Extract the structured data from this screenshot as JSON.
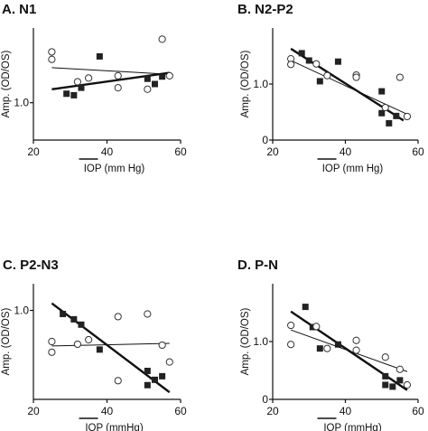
{
  "chart_data": [
    {
      "type": "scatter",
      "panel_label": "A.  N1",
      "xlabel": "IOP (mm Hg)",
      "ylabel": "Amp. (OD/OS)",
      "xticks": [
        "20",
        "40",
        "60"
      ],
      "yticks": [
        "1.0"
      ],
      "xlim": [
        20,
        60
      ],
      "ylim": [
        0.5,
        2.0
      ],
      "grid": false,
      "series": [
        {
          "marker": "filled-square",
          "points": [
            [
              29,
              1.12
            ],
            [
              31,
              1.1
            ],
            [
              33,
              1.2
            ],
            [
              38,
              1.62
            ],
            [
              51,
              1.32
            ],
            [
              53,
              1.25
            ],
            [
              55,
              1.35
            ]
          ],
          "fit": [
            [
              25,
              1.18
            ],
            [
              57,
              1.4
            ]
          ],
          "fit_style": "thick"
        },
        {
          "marker": "open-circle",
          "points": [
            [
              25,
              1.68
            ],
            [
              25,
              1.58
            ],
            [
              32,
              1.28
            ],
            [
              35,
              1.33
            ],
            [
              43,
              1.36
            ],
            [
              43,
              1.2
            ],
            [
              51,
              1.18
            ],
            [
              55,
              1.85
            ],
            [
              57,
              1.36
            ]
          ],
          "fit": [
            [
              25,
              1.47
            ],
            [
              57,
              1.38
            ]
          ],
          "fit_style": "thin"
        }
      ]
    },
    {
      "type": "scatter",
      "panel_label": "B.  N2-P2",
      "xlabel": "IOP (mm Hg)",
      "ylabel": "Amp. (OD/OS)",
      "xticks": [
        "20",
        "40",
        "60"
      ],
      "yticks": [
        "0",
        "1.0"
      ],
      "xlim": [
        20,
        60
      ],
      "ylim": [
        0,
        2.0
      ],
      "grid": false,
      "series": [
        {
          "marker": "filled-square",
          "points": [
            [
              28,
              1.55
            ],
            [
              30,
              1.42
            ],
            [
              33,
              1.05
            ],
            [
              38,
              1.4
            ],
            [
              50,
              0.87
            ],
            [
              50,
              0.48
            ],
            [
              52,
              0.3
            ],
            [
              54,
              0.43
            ]
          ],
          "fit": [
            [
              25,
              1.63
            ],
            [
              56,
              0.35
            ]
          ],
          "fit_style": "thick"
        },
        {
          "marker": "open-circle",
          "points": [
            [
              25,
              1.45
            ],
            [
              25,
              1.35
            ],
            [
              32,
              1.36
            ],
            [
              35,
              1.15
            ],
            [
              43,
              1.16
            ],
            [
              43,
              1.12
            ],
            [
              51,
              0.58
            ],
            [
              55,
              1.12
            ],
            [
              57,
              0.42
            ]
          ],
          "fit": [
            [
              25,
              1.42
            ],
            [
              57,
              0.46
            ]
          ],
          "fit_style": "thin"
        }
      ]
    },
    {
      "type": "scatter",
      "panel_label": "C.  P2-N3",
      "xlabel": "IOP (mmHg)",
      "ylabel": "Amp. (OD/OS)",
      "xticks": [
        "20",
        "40",
        "60"
      ],
      "yticks": [
        "1.0"
      ],
      "xlim": [
        20,
        60
      ],
      "ylim": [
        0,
        1.3
      ],
      "grid": false,
      "series": [
        {
          "marker": "filled-square",
          "points": [
            [
              28,
              0.96
            ],
            [
              31,
              0.9
            ],
            [
              33,
              0.84
            ],
            [
              38,
              0.56
            ],
            [
              51,
              0.32
            ],
            [
              51,
              0.16
            ],
            [
              53,
              0.22
            ],
            [
              55,
              0.26
            ]
          ],
          "fit": [
            [
              25,
              1.08
            ],
            [
              57,
              0.08
            ]
          ],
          "fit_style": "thick"
        },
        {
          "marker": "open-circle",
          "points": [
            [
              25,
              0.65
            ],
            [
              25,
              0.53
            ],
            [
              32,
              0.62
            ],
            [
              35,
              0.67
            ],
            [
              43,
              0.93
            ],
            [
              43,
              0.21
            ],
            [
              51,
              0.96
            ],
            [
              55,
              0.61
            ],
            [
              57,
              0.42
            ]
          ],
          "fit": [
            [
              25,
              0.6
            ],
            [
              57,
              0.63
            ]
          ],
          "fit_style": "thin"
        }
      ]
    },
    {
      "type": "scatter",
      "panel_label": "D.  P-N",
      "xlabel": "IOP (mmHg)",
      "ylabel": "Amp. (OD/OS)",
      "xticks": [
        "20",
        "40",
        "60"
      ],
      "yticks": [
        "0",
        "1.0"
      ],
      "xlim": [
        20,
        60
      ],
      "ylim": [
        0,
        2.0
      ],
      "grid": false,
      "series": [
        {
          "marker": "filled-square",
          "points": [
            [
              29,
              1.6
            ],
            [
              31,
              1.25
            ],
            [
              33,
              0.88
            ],
            [
              38,
              0.95
            ],
            [
              51,
              0.4
            ],
            [
              51,
              0.25
            ],
            [
              53,
              0.22
            ],
            [
              55,
              0.33
            ]
          ],
          "fit": [
            [
              25,
              1.52
            ],
            [
              57,
              0.16
            ]
          ],
          "fit_style": "thick"
        },
        {
          "marker": "open-circle",
          "points": [
            [
              25,
              1.28
            ],
            [
              25,
              0.95
            ],
            [
              32,
              1.26
            ],
            [
              35,
              0.88
            ],
            [
              43,
              1.02
            ],
            [
              43,
              0.85
            ],
            [
              51,
              0.73
            ],
            [
              55,
              0.52
            ],
            [
              57,
              0.25
            ]
          ],
          "fit": [
            [
              25,
              1.2
            ],
            [
              57,
              0.48
            ]
          ],
          "fit_style": "thin"
        }
      ]
    }
  ]
}
